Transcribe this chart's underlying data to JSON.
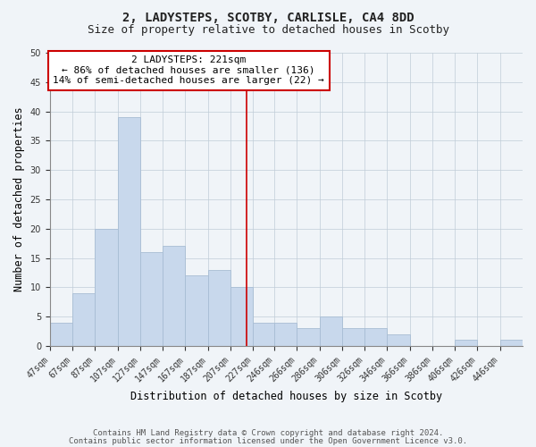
{
  "title": "2, LADYSTEPS, SCOTBY, CARLISLE, CA4 8DD",
  "subtitle": "Size of property relative to detached houses in Scotby",
  "xlabel": "Distribution of detached houses by size in Scotby",
  "ylabel": "Number of detached properties",
  "footnote1": "Contains HM Land Registry data © Crown copyright and database right 2024.",
  "footnote2": "Contains public sector information licensed under the Open Government Licence v3.0.",
  "annotation_line1": "2 LADYSTEPS: 221sqm",
  "annotation_line2": "← 86% of detached houses are smaller (136)",
  "annotation_line3": "14% of semi-detached houses are larger (22) →",
  "bar_color": "#c8d8ec",
  "bar_edge_color": "#a8bdd4",
  "vline_color": "#cc0000",
  "vline_x": 221,
  "categories": [
    "47sqm",
    "67sqm",
    "87sqm",
    "107sqm",
    "127sqm",
    "147sqm",
    "167sqm",
    "187sqm",
    "207sqm",
    "227sqm",
    "246sqm",
    "266sqm",
    "286sqm",
    "306sqm",
    "326sqm",
    "346sqm",
    "366sqm",
    "386sqm",
    "406sqm",
    "426sqm",
    "446sqm"
  ],
  "bin_edges": [
    47,
    67,
    87,
    107,
    127,
    147,
    167,
    187,
    207,
    227,
    246,
    266,
    286,
    306,
    326,
    346,
    366,
    386,
    406,
    426,
    446,
    466
  ],
  "values": [
    4,
    9,
    20,
    39,
    16,
    17,
    12,
    13,
    10,
    4,
    4,
    3,
    5,
    3,
    3,
    2,
    0,
    0,
    1,
    0,
    1
  ],
  "ylim": [
    0,
    50
  ],
  "yticks": [
    0,
    5,
    10,
    15,
    20,
    25,
    30,
    35,
    40,
    45,
    50
  ],
  "annotation_box_color": "#ffffff",
  "annotation_box_edge": "#cc0000",
  "bg_color": "#f0f4f8",
  "title_fontsize": 10,
  "subtitle_fontsize": 9,
  "axis_label_fontsize": 8.5,
  "tick_fontsize": 7,
  "annotation_fontsize": 8,
  "footnote_fontsize": 6.5
}
